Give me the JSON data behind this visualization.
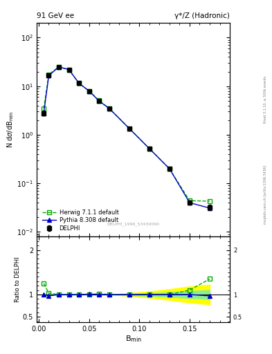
{
  "title_left": "91 GeV ee",
  "title_right": "γ*/Z (Hadronic)",
  "ylabel_main": "N dσ/dB_min",
  "ylabel_ratio": "Ratio to DELPHI",
  "xlabel": "B_min",
  "right_label_top": "Rivet 3.1.10, ≥ 500k events",
  "right_label_bot": "mcplots.cern.ch [arXiv:1306.3436]",
  "watermark": "DELPHI_1996_S3430090",
  "bmin_data": [
    0.005,
    0.01,
    0.02,
    0.03,
    0.04,
    0.05,
    0.06,
    0.07,
    0.09,
    0.11,
    0.13,
    0.15,
    0.17
  ],
  "delphi_y": [
    2.8,
    17.0,
    25.0,
    22.0,
    11.5,
    8.0,
    5.0,
    3.5,
    1.35,
    0.52,
    0.2,
    0.04,
    0.032
  ],
  "delphi_yerr": [
    0.3,
    1.0,
    1.5,
    1.5,
    0.8,
    0.5,
    0.35,
    0.25,
    0.1,
    0.04,
    0.015,
    0.004,
    0.004
  ],
  "herwig_x": [
    0.005,
    0.01,
    0.02,
    0.03,
    0.04,
    0.05,
    0.06,
    0.07,
    0.09,
    0.11,
    0.13,
    0.15,
    0.17
  ],
  "herwig_y": [
    3.5,
    17.5,
    25.0,
    22.0,
    11.5,
    8.0,
    5.1,
    3.5,
    1.35,
    0.52,
    0.2,
    0.044,
    0.043
  ],
  "pythia_x": [
    0.005,
    0.01,
    0.02,
    0.03,
    0.04,
    0.05,
    0.06,
    0.07,
    0.09,
    0.11,
    0.13,
    0.15,
    0.17
  ],
  "pythia_y": [
    2.8,
    16.5,
    25.0,
    22.0,
    11.5,
    8.0,
    4.95,
    3.5,
    1.35,
    0.52,
    0.2,
    0.04,
    0.031
  ],
  "herwig_ratio": [
    1.25,
    1.03,
    1.0,
    1.0,
    1.0,
    1.0,
    1.02,
    1.0,
    1.0,
    1.0,
    1.0,
    1.1,
    1.35
  ],
  "pythia_ratio": [
    1.0,
    0.97,
    1.0,
    1.0,
    1.0,
    1.01,
    1.0,
    1.0,
    1.0,
    1.0,
    1.0,
    1.0,
    0.97
  ],
  "delphi_color": "#000000",
  "herwig_color": "#00aa00",
  "pythia_color": "#0000cc",
  "band_yellow_lo": [
    1.0,
    1.0,
    1.0,
    1.0,
    1.0,
    1.0,
    1.0,
    1.0,
    0.97,
    0.93,
    0.88,
    0.82,
    0.78
  ],
  "band_yellow_hi": [
    1.0,
    1.0,
    1.0,
    1.0,
    1.0,
    1.0,
    1.0,
    1.0,
    1.03,
    1.07,
    1.12,
    1.18,
    1.22
  ],
  "band_green_lo": [
    1.0,
    1.0,
    1.0,
    1.0,
    1.0,
    1.0,
    1.0,
    1.0,
    0.985,
    0.97,
    0.95,
    0.92,
    0.9
  ],
  "band_green_hi": [
    1.0,
    1.0,
    1.0,
    1.0,
    1.0,
    1.0,
    1.0,
    1.0,
    1.015,
    1.03,
    1.05,
    1.08,
    1.1
  ],
  "xlim": [
    -0.002,
    0.19
  ],
  "ylim_main": [
    0.008,
    200
  ],
  "ylim_ratio": [
    0.38,
    2.3
  ]
}
